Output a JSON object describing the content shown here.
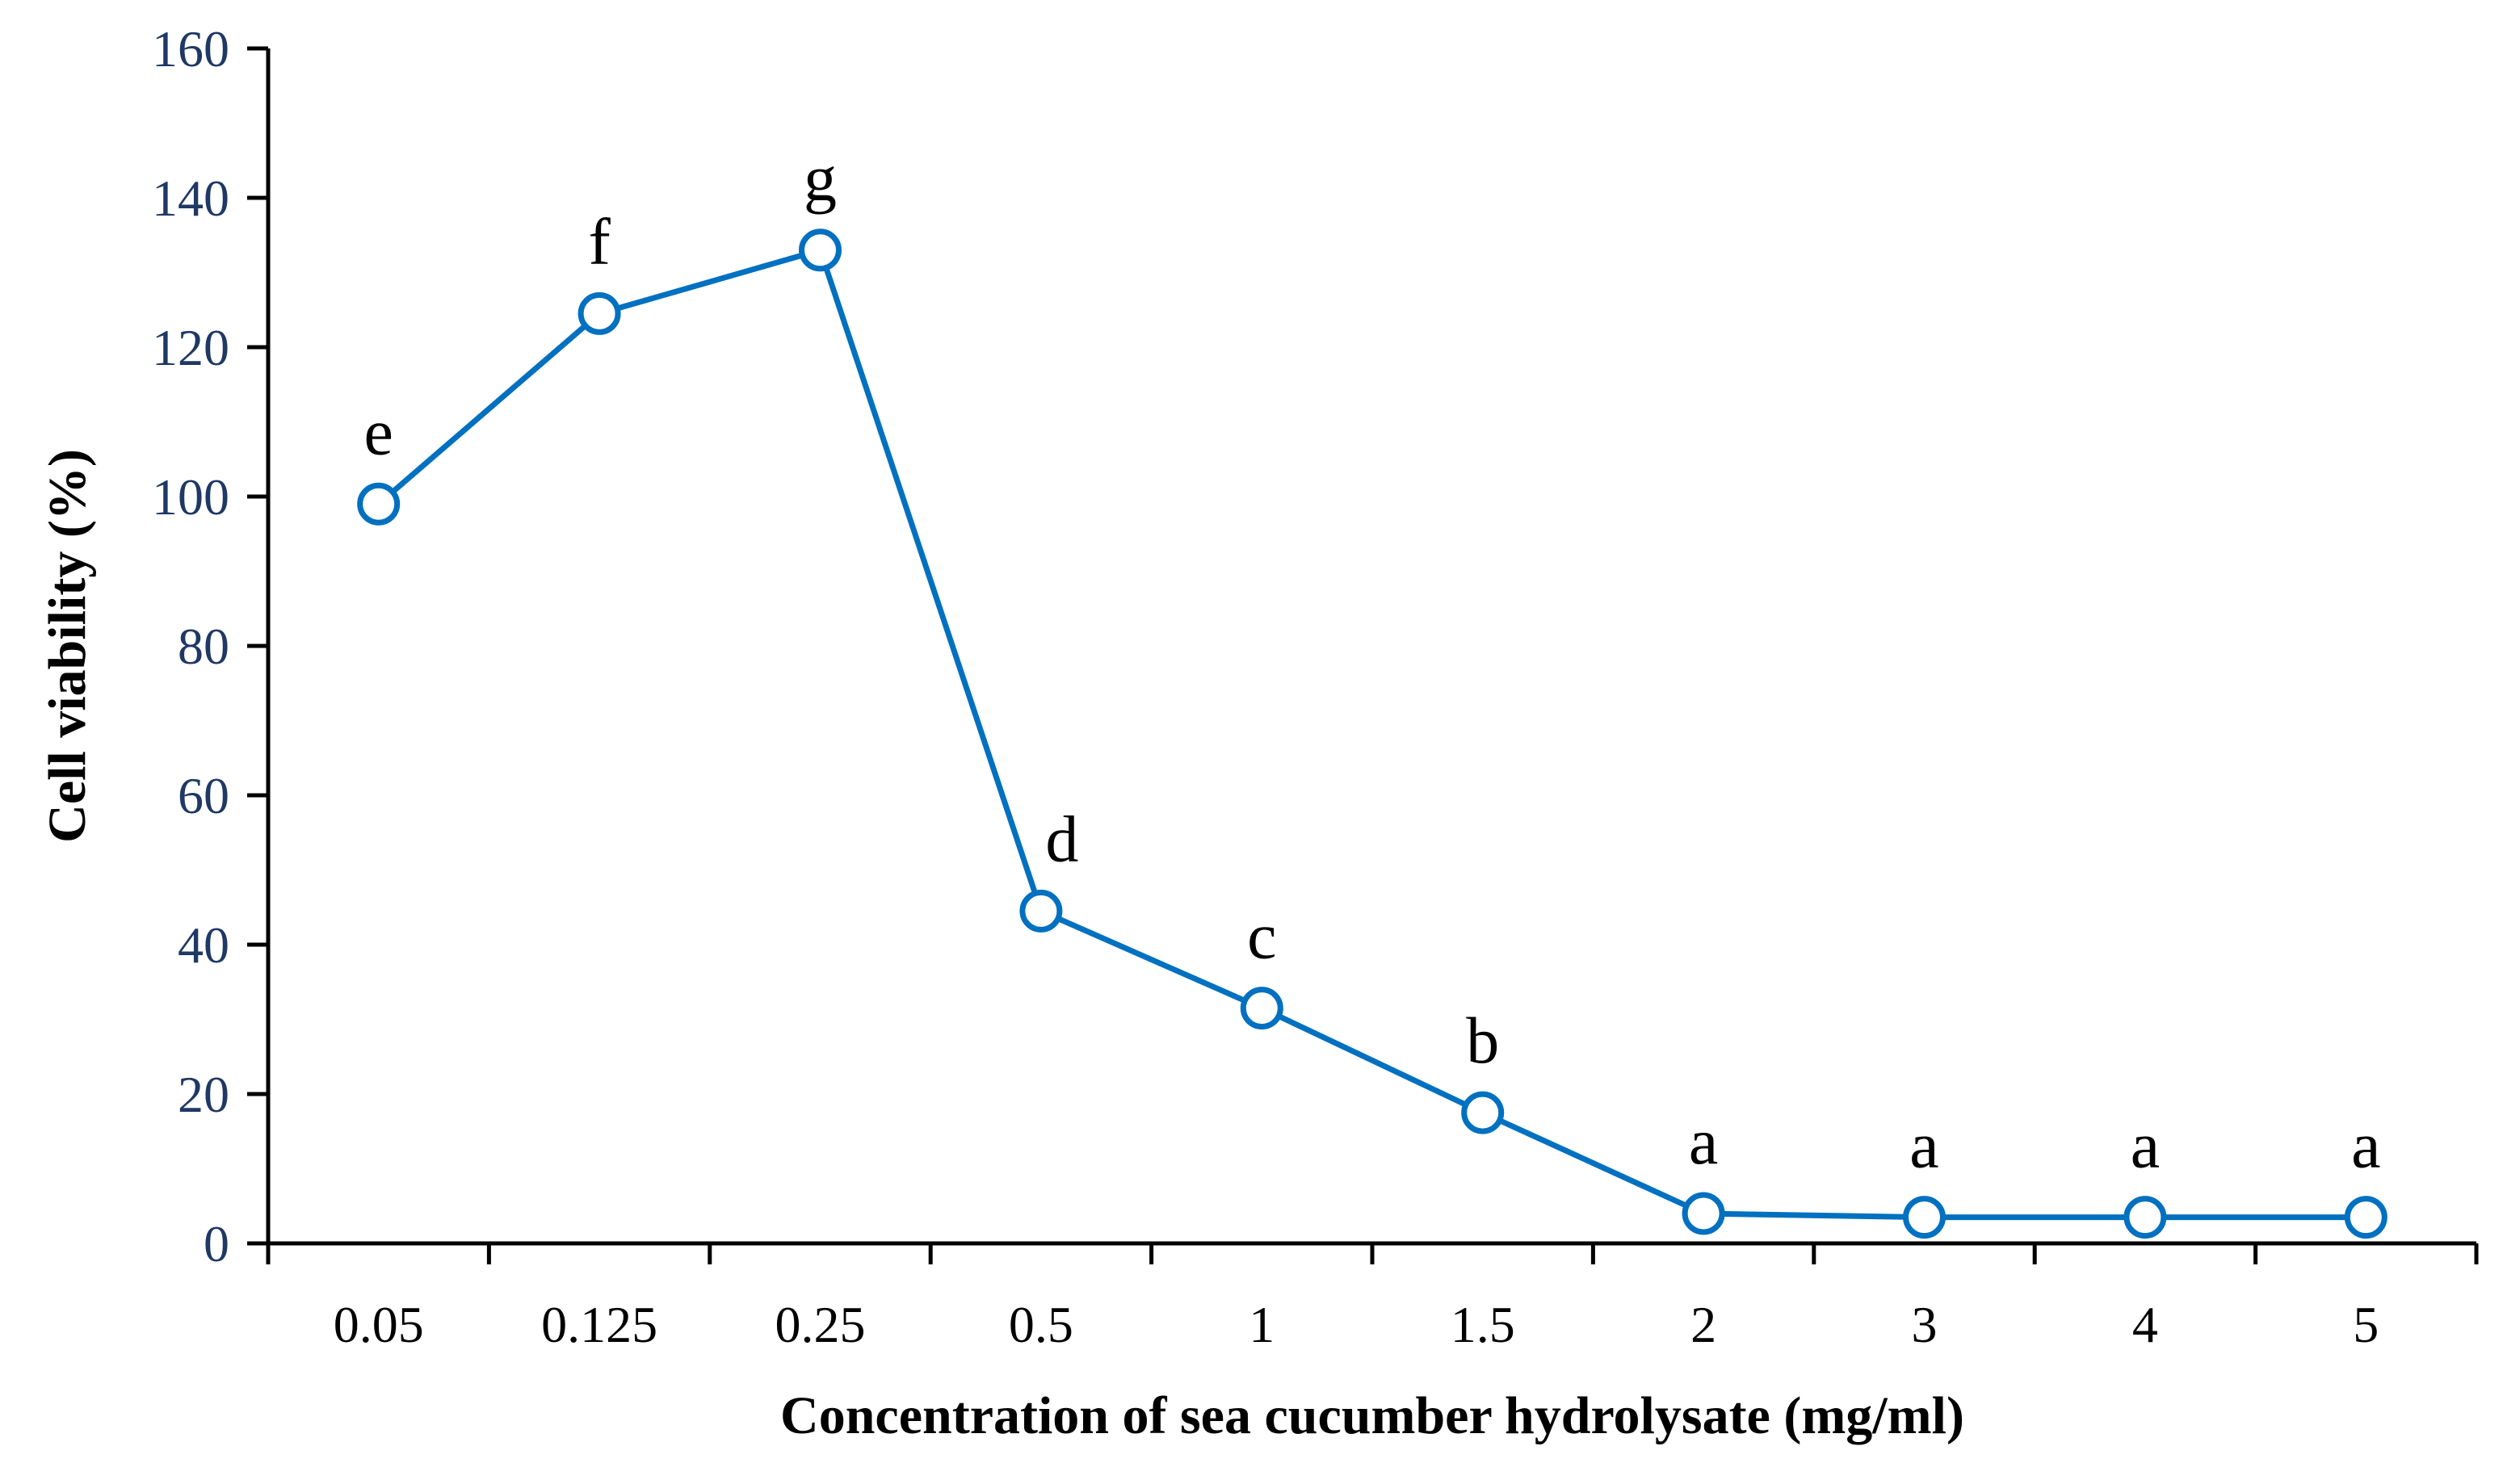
{
  "chart_data": {
    "type": "line",
    "title": "",
    "xlabel": "Concentration of sea cucumber hydrolysate (mg/ml)",
    "ylabel": "Cell viability (%)",
    "categories": [
      "0.05",
      "0.125",
      "0.25",
      "0.5",
      "1",
      "1.5",
      "2",
      "3",
      "4",
      "5"
    ],
    "series": [
      {
        "values": [
          99,
          124.5,
          133,
          44.5,
          31.5,
          17.5,
          4,
          3.5,
          3.5,
          3.5
        ],
        "labels": [
          "e",
          "f",
          "g",
          "d",
          "c",
          "b",
          "a",
          "a",
          "a",
          "a"
        ],
        "color": "#0070C0",
        "marker": "open-circle"
      }
    ],
    "ylim": [
      0,
      160
    ],
    "yticks": [
      0,
      20,
      40,
      60,
      80,
      100,
      120,
      140,
      160
    ],
    "grid": false,
    "legend": "none",
    "colors": {
      "line": "#0070C0",
      "ytick_text": "#1F3864",
      "axis": "#000000"
    }
  }
}
